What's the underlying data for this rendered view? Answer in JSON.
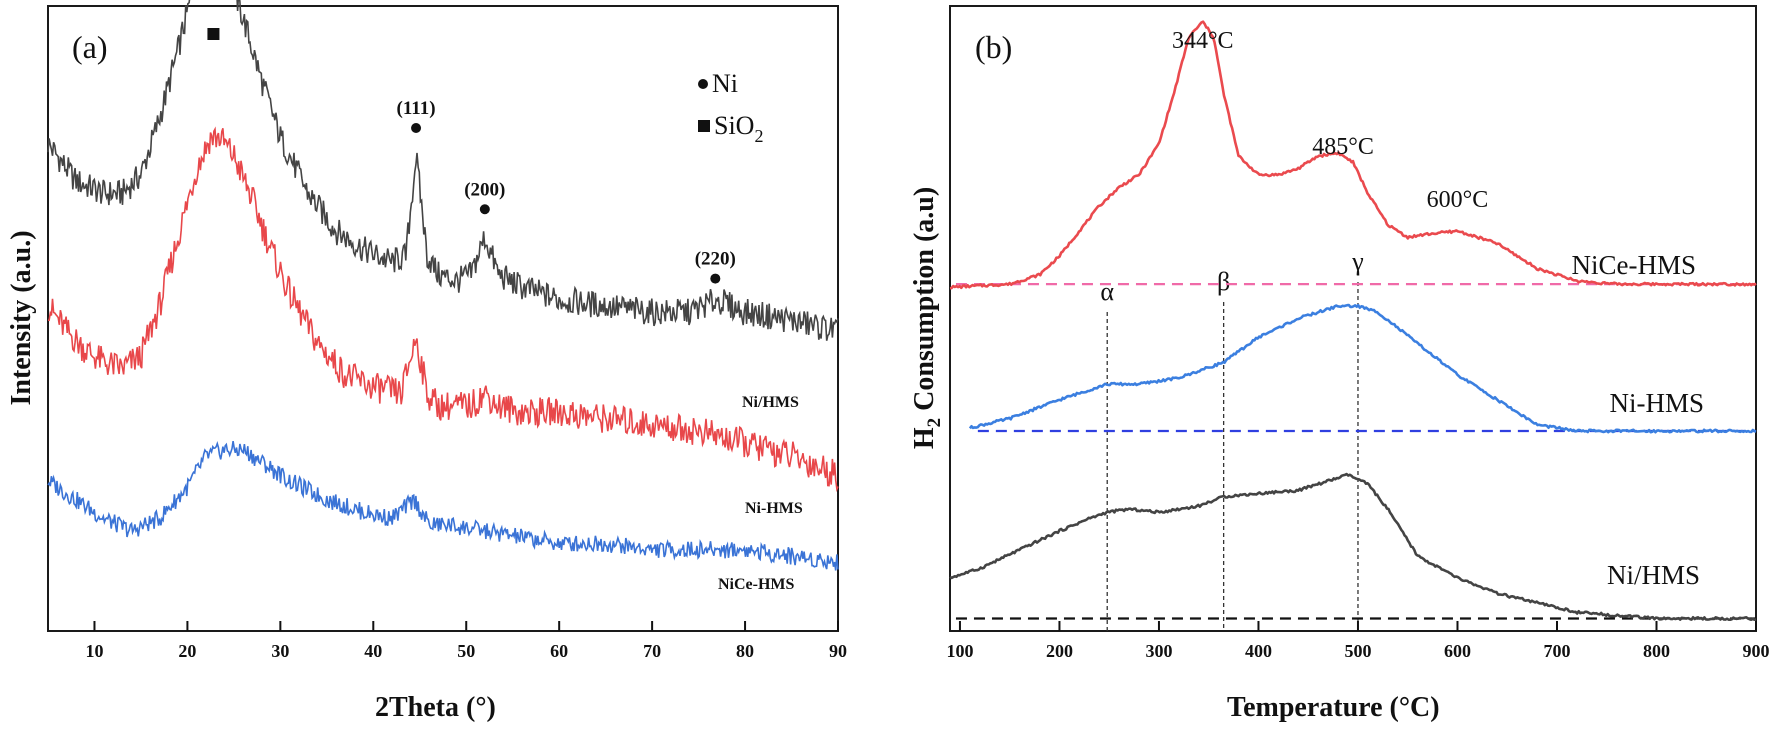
{
  "chart_data": [
    {
      "type": "line",
      "panel_label": "(a)",
      "xlabel": "2Theta",
      "xlabel_unit": "(°)",
      "ylabel": "Intensity (a.u.)",
      "xlim": [
        5,
        90
      ],
      "xticks": [
        "10",
        "20",
        "30",
        "40",
        "50",
        "60",
        "70",
        "80",
        "90"
      ],
      "legend": [
        {
          "marker": "circle",
          "label": "Ni"
        },
        {
          "marker": "square",
          "label": "SiO",
          "sub": "2"
        }
      ],
      "peak_labels": [
        {
          "text": "(111)",
          "x": 44.6
        },
        {
          "text": "(200)",
          "x": 52.0
        },
        {
          "text": "(220)",
          "x": 76.8
        }
      ],
      "sio2_marker_x": 22.8,
      "series": [
        {
          "name": "Ni/HMS",
          "color": "#444444",
          "x": [
            5,
            8,
            11,
            13,
            15,
            17,
            19,
            20.5,
            22,
            23,
            24.5,
            26,
            28,
            30,
            33,
            36,
            39,
            42,
            43.5,
            44.6,
            45.8,
            47,
            49,
            50.5,
            52,
            53.5,
            56,
            60,
            65,
            70,
            74,
            77,
            80,
            84,
            90
          ],
          "y": [
            0.78,
            0.72,
            0.7,
            0.7,
            0.73,
            0.82,
            0.93,
            1.02,
            1.09,
            1.09,
            1.05,
            0.98,
            0.88,
            0.79,
            0.7,
            0.64,
            0.61,
            0.59,
            0.6,
            0.76,
            0.6,
            0.57,
            0.56,
            0.57,
            0.63,
            0.57,
            0.55,
            0.53,
            0.52,
            0.51,
            0.51,
            0.53,
            0.51,
            0.5,
            0.48
          ]
        },
        {
          "name": "Ni-HMS",
          "color": "#e8474a",
          "x": [
            5,
            7,
            9,
            11,
            13,
            15,
            17,
            19,
            21,
            22.5,
            23.5,
            25,
            27,
            29,
            31,
            34,
            37,
            40,
            43,
            44.6,
            45.8,
            47,
            49,
            50.5,
            52,
            53.5,
            56,
            60,
            65,
            70,
            75,
            80,
            85,
            90
          ],
          "y": [
            0.52,
            0.48,
            0.45,
            0.43,
            0.42,
            0.44,
            0.52,
            0.63,
            0.74,
            0.79,
            0.79,
            0.76,
            0.69,
            0.61,
            0.54,
            0.46,
            0.41,
            0.39,
            0.38,
            0.47,
            0.38,
            0.36,
            0.36,
            0.36,
            0.38,
            0.36,
            0.35,
            0.35,
            0.34,
            0.33,
            0.32,
            0.3,
            0.28,
            0.25
          ]
        },
        {
          "name": "NiCe-HMS",
          "color": "#3a73d6",
          "x": [
            5,
            8,
            11,
            14,
            17,
            20,
            22,
            24,
            26,
            28,
            31,
            35,
            39,
            42,
            44.4,
            46,
            48,
            52,
            56,
            60,
            65,
            70,
            75,
            80,
            85,
            90
          ],
          "y": [
            0.24,
            0.21,
            0.18,
            0.16,
            0.18,
            0.23,
            0.28,
            0.29,
            0.29,
            0.27,
            0.24,
            0.21,
            0.19,
            0.18,
            0.21,
            0.17,
            0.17,
            0.16,
            0.15,
            0.14,
            0.14,
            0.13,
            0.13,
            0.13,
            0.12,
            0.11
          ]
        }
      ]
    },
    {
      "type": "line",
      "panel_label": "(b)",
      "xlabel": "Temperature",
      "xlabel_unit": "(°C)",
      "ylabel": "H",
      "ylabel_sub": "2",
      "ylabel_rest": " Consumption (a.u)",
      "xlim": [
        90,
        900
      ],
      "xticks": [
        "100",
        "200",
        "300",
        "400",
        "500",
        "600",
        "700",
        "800",
        "900"
      ],
      "annotations": [
        {
          "text": "344°C",
          "x": 344
        },
        {
          "text": "485°C",
          "x": 485
        },
        {
          "text": "600°C",
          "x": 600
        }
      ],
      "regions": [
        {
          "symbol": "α",
          "x": 248
        },
        {
          "symbol": "β",
          "x": 365
        },
        {
          "symbol": "γ",
          "x": 500
        }
      ],
      "series": [
        {
          "name": "NiCe-HMS",
          "color": "#ea4a4e",
          "baseline_color": "#f06aa8",
          "x": [
            90,
            150,
            180,
            200,
            220,
            240,
            260,
            280,
            300,
            315,
            330,
            344,
            355,
            365,
            380,
            400,
            420,
            440,
            460,
            480,
            495,
            510,
            530,
            550,
            570,
            600,
            640,
            680,
            720,
            760,
            800,
            900
          ],
          "y": [
            0.55,
            0.555,
            0.57,
            0.6,
            0.64,
            0.68,
            0.71,
            0.73,
            0.78,
            0.86,
            0.95,
            0.975,
            0.95,
            0.86,
            0.76,
            0.73,
            0.73,
            0.74,
            0.76,
            0.765,
            0.75,
            0.7,
            0.65,
            0.63,
            0.635,
            0.64,
            0.62,
            0.58,
            0.56,
            0.555,
            0.555,
            0.555
          ]
        },
        {
          "name": "Ni-HMS",
          "color": "#3b7fe0",
          "baseline_color": "#2f3fe0",
          "x": [
            110,
            150,
            200,
            248,
            280,
            320,
            365,
            400,
            440,
            480,
            500,
            520,
            560,
            600,
            640,
            680,
            720,
            800,
            900
          ],
          "y": [
            0.325,
            0.34,
            0.37,
            0.395,
            0.395,
            0.405,
            0.43,
            0.47,
            0.5,
            0.52,
            0.52,
            0.51,
            0.46,
            0.41,
            0.37,
            0.33,
            0.32,
            0.32,
            0.32
          ]
        },
        {
          "name": "Ni/HMS",
          "color": "#444444",
          "baseline_color": "#111111",
          "x": [
            90,
            120,
            160,
            200,
            230,
            248,
            270,
            300,
            340,
            365,
            400,
            440,
            470,
            490,
            510,
            530,
            560,
            600,
            640,
            680,
            720,
            760,
            800,
            900
          ],
          "y": [
            0.085,
            0.1,
            0.13,
            0.16,
            0.18,
            0.19,
            0.195,
            0.19,
            0.2,
            0.215,
            0.22,
            0.225,
            0.24,
            0.25,
            0.235,
            0.195,
            0.12,
            0.085,
            0.06,
            0.045,
            0.03,
            0.025,
            0.02,
            0.02
          ]
        }
      ]
    }
  ]
}
